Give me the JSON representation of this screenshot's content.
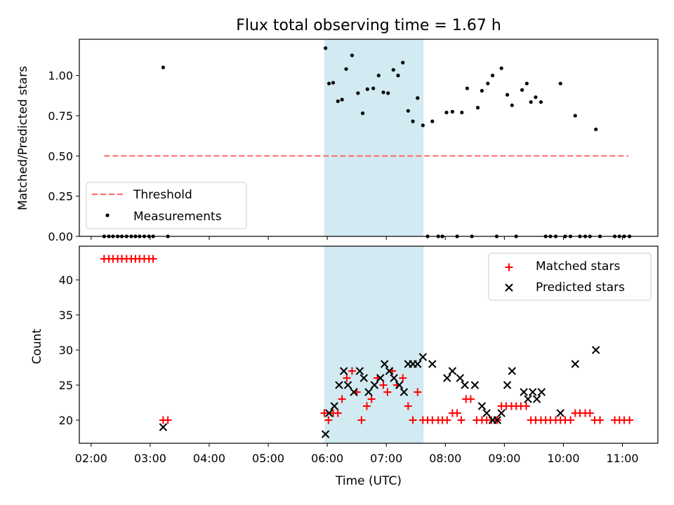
{
  "chart_data": [
    {
      "type": "scatter",
      "title": "Flux total observing time = 1.67 h",
      "xlabel": "",
      "ylabel": "Matched/Predicted stars",
      "x_unit": "hours (UTC)",
      "xlim": [
        1.8,
        11.6
      ],
      "ylim": [
        0.0,
        1.225
      ],
      "yticks": [
        "0.00",
        "0.25",
        "0.50",
        "0.75",
        "1.00"
      ],
      "ytick_values": [
        0,
        0.25,
        0.5,
        0.75,
        1.0
      ],
      "shaded_span": {
        "x": [
          5.95,
          7.63
        ],
        "color": "#add8e6"
      },
      "legend": {
        "position": "lower-left",
        "entries": [
          "Threshold",
          "Measurements"
        ]
      },
      "series": [
        {
          "name": "Threshold",
          "style": "dashed-line",
          "color": "#ff6f6f",
          "points": [
            [
              2.22,
              0.5
            ],
            [
              11.1,
              0.5
            ]
          ]
        },
        {
          "name": "Measurements",
          "style": "dot",
          "color": "#000000",
          "points": [
            [
              2.22,
              0
            ],
            [
              2.3,
              0
            ],
            [
              2.37,
              0
            ],
            [
              2.45,
              0
            ],
            [
              2.52,
              0
            ],
            [
              2.6,
              0
            ],
            [
              2.68,
              0
            ],
            [
              2.75,
              0
            ],
            [
              2.82,
              0
            ],
            [
              2.9,
              0
            ],
            [
              2.98,
              0
            ],
            [
              3.05,
              0
            ],
            [
              3.22,
              1.05
            ],
            [
              3.3,
              0
            ],
            [
              5.97,
              1.17
            ],
            [
              6.03,
              0.95
            ],
            [
              6.1,
              0.955
            ],
            [
              6.18,
              0.84
            ],
            [
              6.25,
              0.85
            ],
            [
              6.32,
              1.04
            ],
            [
              6.42,
              1.125
            ],
            [
              6.52,
              0.89
            ],
            [
              6.6,
              0.765
            ],
            [
              6.68,
              0.915
            ],
            [
              6.78,
              0.92
            ],
            [
              6.87,
              1.0
            ],
            [
              6.95,
              0.895
            ],
            [
              7.03,
              0.89
            ],
            [
              7.12,
              1.035
            ],
            [
              7.2,
              1.0
            ],
            [
              7.28,
              1.08
            ],
            [
              7.37,
              0.78
            ],
            [
              7.45,
              0.715
            ],
            [
              7.53,
              0.86
            ],
            [
              7.62,
              0.69
            ],
            [
              7.7,
              0
            ],
            [
              7.78,
              0.715
            ],
            [
              7.88,
              0
            ],
            [
              7.95,
              0
            ],
            [
              8.02,
              0.77
            ],
            [
              8.12,
              0.775
            ],
            [
              8.2,
              0
            ],
            [
              8.28,
              0.77
            ],
            [
              8.37,
              0.92
            ],
            [
              8.45,
              0
            ],
            [
              8.55,
              0.8
            ],
            [
              8.62,
              0.905
            ],
            [
              8.72,
              0.95
            ],
            [
              8.8,
              1.0
            ],
            [
              8.87,
              0
            ],
            [
              8.95,
              1.045
            ],
            [
              9.05,
              0.88
            ],
            [
              9.13,
              0.815
            ],
            [
              9.2,
              0
            ],
            [
              9.3,
              0.91
            ],
            [
              9.38,
              0.95
            ],
            [
              9.45,
              0.835
            ],
            [
              9.53,
              0.865
            ],
            [
              9.62,
              0.835
            ],
            [
              9.7,
              0
            ],
            [
              9.78,
              0
            ],
            [
              9.87,
              0
            ],
            [
              9.95,
              0.95
            ],
            [
              10.03,
              0
            ],
            [
              10.12,
              0
            ],
            [
              10.2,
              0.75
            ],
            [
              10.28,
              0
            ],
            [
              10.37,
              0
            ],
            [
              10.45,
              0
            ],
            [
              10.55,
              0.665
            ],
            [
              10.62,
              0
            ],
            [
              10.87,
              0
            ],
            [
              10.95,
              0
            ],
            [
              11.03,
              0
            ],
            [
              11.12,
              0
            ]
          ]
        }
      ]
    },
    {
      "type": "scatter",
      "title": "",
      "xlabel": "Time (UTC)",
      "ylabel": "Count",
      "x_unit": "hours (UTC)",
      "xlim": [
        1.8,
        11.6
      ],
      "ylim": [
        16.7,
        44.8
      ],
      "xticks": [
        "02:00",
        "03:00",
        "04:00",
        "05:00",
        "06:00",
        "07:00",
        "08:00",
        "09:00",
        "10:00",
        "11:00"
      ],
      "xtick_values": [
        2,
        3,
        4,
        5,
        6,
        7,
        8,
        9,
        10,
        11
      ],
      "yticks": [
        "20",
        "25",
        "30",
        "35",
        "40"
      ],
      "ytick_values": [
        20,
        25,
        30,
        35,
        40
      ],
      "shaded_span": {
        "x": [
          5.95,
          7.63
        ],
        "color": "#add8e6"
      },
      "legend": {
        "position": "upper-right",
        "entries": [
          "Matched stars",
          "Predicted stars"
        ]
      },
      "series": [
        {
          "name": "Matched stars",
          "marker": "plus",
          "color": "#ff0000",
          "points": [
            [
              2.22,
              43
            ],
            [
              2.3,
              43
            ],
            [
              2.37,
              43
            ],
            [
              2.45,
              43
            ],
            [
              2.52,
              43
            ],
            [
              2.6,
              43
            ],
            [
              2.68,
              43
            ],
            [
              2.75,
              43
            ],
            [
              2.82,
              43
            ],
            [
              2.9,
              43
            ],
            [
              2.98,
              43
            ],
            [
              3.05,
              43
            ],
            [
              3.22,
              20
            ],
            [
              3.3,
              20
            ],
            [
              5.95,
              21
            ],
            [
              6.02,
              20
            ],
            [
              6.1,
              21
            ],
            [
              6.18,
              21
            ],
            [
              6.25,
              23
            ],
            [
              6.33,
              26
            ],
            [
              6.42,
              27
            ],
            [
              6.5,
              24
            ],
            [
              6.58,
              20
            ],
            [
              6.67,
              22
            ],
            [
              6.75,
              23
            ],
            [
              6.85,
              26
            ],
            [
              6.95,
              25
            ],
            [
              7.02,
              24
            ],
            [
              7.1,
              27
            ],
            [
              7.18,
              25
            ],
            [
              7.28,
              26
            ],
            [
              7.37,
              22
            ],
            [
              7.45,
              20
            ],
            [
              7.53,
              24
            ],
            [
              7.62,
              20
            ],
            [
              7.7,
              20
            ],
            [
              7.78,
              20
            ],
            [
              7.88,
              20
            ],
            [
              7.95,
              20
            ],
            [
              8.03,
              20
            ],
            [
              8.12,
              21
            ],
            [
              8.2,
              21
            ],
            [
              8.27,
              20
            ],
            [
              8.35,
              23
            ],
            [
              8.43,
              23
            ],
            [
              8.53,
              20
            ],
            [
              8.62,
              20
            ],
            [
              8.7,
              20
            ],
            [
              8.78,
              20
            ],
            [
              8.88,
              20
            ],
            [
              8.95,
              22
            ],
            [
              9.03,
              22
            ],
            [
              9.12,
              22
            ],
            [
              9.2,
              22
            ],
            [
              9.28,
              22
            ],
            [
              9.37,
              22
            ],
            [
              9.45,
              20
            ],
            [
              9.53,
              20
            ],
            [
              9.62,
              20
            ],
            [
              9.7,
              20
            ],
            [
              9.78,
              20
            ],
            [
              9.87,
              20
            ],
            [
              9.95,
              20
            ],
            [
              10.03,
              20
            ],
            [
              10.12,
              20
            ],
            [
              10.2,
              21
            ],
            [
              10.28,
              21
            ],
            [
              10.37,
              21
            ],
            [
              10.45,
              21
            ],
            [
              10.53,
              20
            ],
            [
              10.62,
              20
            ],
            [
              10.87,
              20
            ],
            [
              10.95,
              20
            ],
            [
              11.03,
              20
            ],
            [
              11.12,
              20
            ]
          ]
        },
        {
          "name": "Predicted stars",
          "marker": "x",
          "color": "#000000",
          "points": [
            [
              3.22,
              19
            ],
            [
              5.97,
              18
            ],
            [
              6.03,
              21
            ],
            [
              6.12,
              22
            ],
            [
              6.2,
              25
            ],
            [
              6.28,
              27
            ],
            [
              6.35,
              25
            ],
            [
              6.45,
              24
            ],
            [
              6.55,
              27
            ],
            [
              6.62,
              26
            ],
            [
              6.7,
              24
            ],
            [
              6.8,
              25
            ],
            [
              6.9,
              26
            ],
            [
              6.97,
              28
            ],
            [
              7.05,
              27
            ],
            [
              7.13,
              26
            ],
            [
              7.22,
              25
            ],
            [
              7.3,
              24
            ],
            [
              7.37,
              28
            ],
            [
              7.45,
              28
            ],
            [
              7.53,
              28
            ],
            [
              7.62,
              29
            ],
            [
              7.78,
              28
            ],
            [
              8.03,
              26
            ],
            [
              8.12,
              27
            ],
            [
              8.25,
              26
            ],
            [
              8.33,
              25
            ],
            [
              8.5,
              25
            ],
            [
              8.62,
              22
            ],
            [
              8.7,
              21
            ],
            [
              8.8,
              20
            ],
            [
              8.88,
              20
            ],
            [
              8.95,
              21
            ],
            [
              9.05,
              25
            ],
            [
              9.13,
              27
            ],
            [
              9.33,
              24
            ],
            [
              9.4,
              23
            ],
            [
              9.48,
              24
            ],
            [
              9.55,
              23
            ],
            [
              9.63,
              24
            ],
            [
              9.95,
              21
            ],
            [
              10.2,
              28
            ],
            [
              10.55,
              30
            ]
          ]
        }
      ]
    }
  ]
}
